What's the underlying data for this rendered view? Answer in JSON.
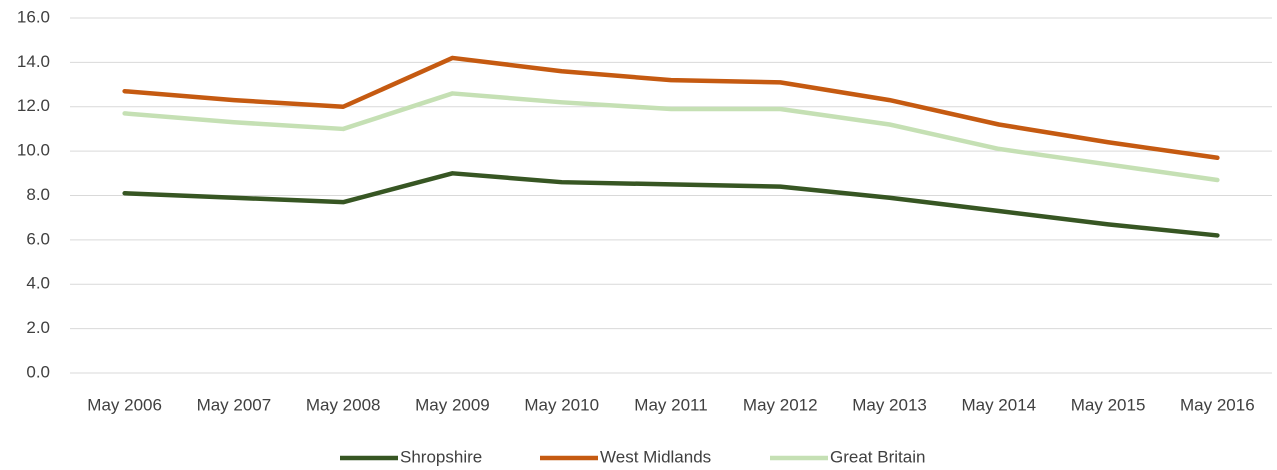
{
  "chart_data": {
    "type": "line",
    "categories": [
      "May 2006",
      "May 2007",
      "May 2008",
      "May 2009",
      "May 2010",
      "May 2011",
      "May 2012",
      "May 2013",
      "May 2014",
      "May 2015",
      "May 2016"
    ],
    "series": [
      {
        "name": "Shropshire",
        "color": "#375623",
        "values": [
          8.1,
          7.9,
          7.7,
          9.0,
          8.6,
          8.5,
          8.4,
          7.9,
          7.3,
          6.7,
          6.2
        ]
      },
      {
        "name": "West Midlands",
        "color": "#c55a11",
        "values": [
          12.7,
          12.3,
          12.0,
          14.2,
          13.6,
          13.2,
          13.1,
          12.3,
          11.2,
          10.4,
          9.7
        ]
      },
      {
        "name": "Great Britain",
        "color": "#c5e0b4",
        "values": [
          11.7,
          11.3,
          11.0,
          12.6,
          12.2,
          11.9,
          11.9,
          11.2,
          10.1,
          9.4,
          8.7
        ]
      }
    ],
    "ylim": [
      0,
      16
    ],
    "yticks": [
      {
        "value": 0,
        "label": "0.0"
      },
      {
        "value": 2,
        "label": "2.0"
      },
      {
        "value": 4,
        "label": "4.0"
      },
      {
        "value": 6,
        "label": "6.0"
      },
      {
        "value": 8,
        "label": "8.0"
      },
      {
        "value": 10,
        "label": "10.0"
      },
      {
        "value": 12,
        "label": "12.0"
      },
      {
        "value": 14,
        "label": "14.0"
      },
      {
        "value": 16,
        "label": "16.0"
      }
    ],
    "grid": true,
    "legend": "bottom"
  }
}
